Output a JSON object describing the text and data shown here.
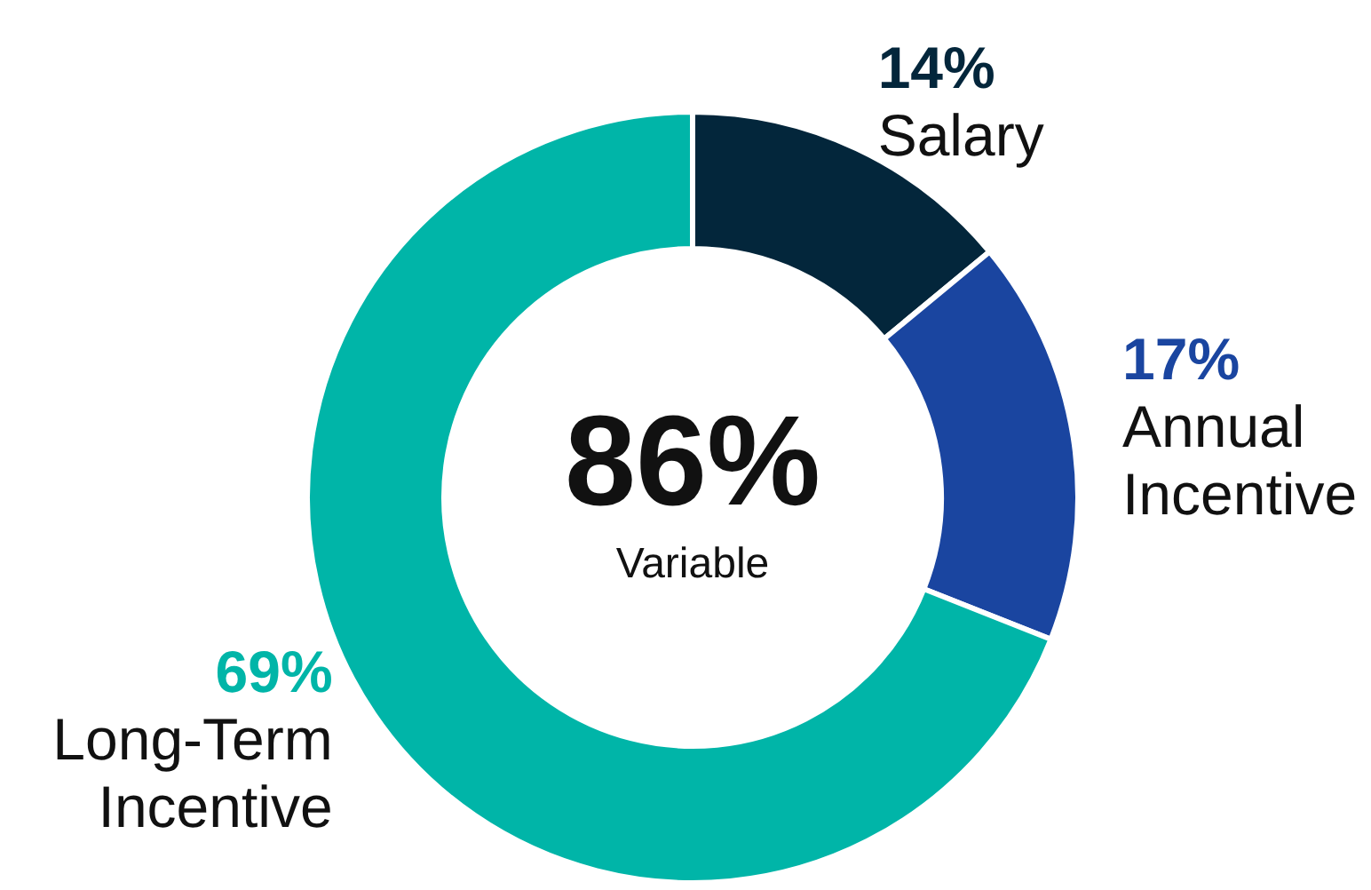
{
  "chart_data": {
    "type": "donut",
    "categories": [
      "Salary",
      "Annual Incentive",
      "Long-Term Incentive"
    ],
    "values": [
      14,
      17,
      69
    ],
    "colors": [
      "#03263b",
      "#1a45a0",
      "#00b5a8"
    ],
    "value_labels": [
      "14%",
      "17%",
      "69%"
    ],
    "annotations": [
      "86%",
      "Variable"
    ]
  }
}
